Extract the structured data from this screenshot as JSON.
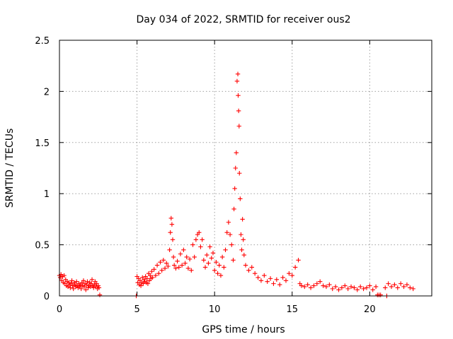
{
  "chart_data": {
    "type": "scatter",
    "title": "Day 034 of 2022, SRMTID for receiver ous2",
    "xlabel": "GPS time / hours",
    "ylabel": "SRMTID / TECUs",
    "xlim": [
      0,
      24
    ],
    "ylim": [
      0,
      2.5
    ],
    "xticks": [
      0,
      5,
      10,
      15,
      20
    ],
    "xtick_labels": [
      "0",
      "5",
      "10",
      "15",
      "20"
    ],
    "yticks": [
      0,
      0.5,
      1,
      1.5,
      2,
      2.5
    ],
    "ytick_labels": [
      "0",
      "0.5",
      "1",
      "1.5",
      "2",
      "2.5"
    ],
    "grid": true,
    "marker": "+",
    "color": "#ff0000",
    "series": [
      {
        "name": "SRMTID",
        "points": [
          [
            0.0,
            0.2
          ],
          [
            0.05,
            0.18
          ],
          [
            0.1,
            0.21
          ],
          [
            0.15,
            0.15
          ],
          [
            0.2,
            0.19
          ],
          [
            0.25,
            0.13
          ],
          [
            0.3,
            0.2
          ],
          [
            0.35,
            0.12
          ],
          [
            0.4,
            0.16
          ],
          [
            0.45,
            0.1
          ],
          [
            0.5,
            0.14
          ],
          [
            0.55,
            0.09
          ],
          [
            0.6,
            0.13
          ],
          [
            0.65,
            0.11
          ],
          [
            0.7,
            0.08
          ],
          [
            0.75,
            0.12
          ],
          [
            0.8,
            0.15
          ],
          [
            0.85,
            0.1
          ],
          [
            0.9,
            0.07
          ],
          [
            0.95,
            0.13
          ],
          [
            1.0,
            0.11
          ],
          [
            1.05,
            0.09
          ],
          [
            1.1,
            0.14
          ],
          [
            1.15,
            0.1
          ],
          [
            1.2,
            0.08
          ],
          [
            1.25,
            0.12
          ],
          [
            1.3,
            0.09
          ],
          [
            1.35,
            0.11
          ],
          [
            1.4,
            0.07
          ],
          [
            1.45,
            0.13
          ],
          [
            1.5,
            0.1
          ],
          [
            1.55,
            0.15
          ],
          [
            1.6,
            0.09
          ],
          [
            1.65,
            0.12
          ],
          [
            1.7,
            0.06
          ],
          [
            1.75,
            0.11
          ],
          [
            1.8,
            0.14
          ],
          [
            1.85,
            0.08
          ],
          [
            1.9,
            0.1
          ],
          [
            1.95,
            0.13
          ],
          [
            2.0,
            0.09
          ],
          [
            2.05,
            0.12
          ],
          [
            2.1,
            0.16
          ],
          [
            2.15,
            0.1
          ],
          [
            2.2,
            0.08
          ],
          [
            2.25,
            0.11
          ],
          [
            2.3,
            0.14
          ],
          [
            2.35,
            0.09
          ],
          [
            2.4,
            0.12
          ],
          [
            2.45,
            0.07
          ],
          [
            2.5,
            0.1
          ],
          [
            2.55,
            0.08
          ],
          [
            2.6,
            0.01
          ],
          [
            4.95,
            0.0
          ],
          [
            5.0,
            0.19
          ],
          [
            5.05,
            0.13
          ],
          [
            5.1,
            0.17
          ],
          [
            5.15,
            0.11
          ],
          [
            5.2,
            0.15
          ],
          [
            5.25,
            0.1
          ],
          [
            5.3,
            0.13
          ],
          [
            5.35,
            0.18
          ],
          [
            5.4,
            0.12
          ],
          [
            5.45,
            0.16
          ],
          [
            5.5,
            0.14
          ],
          [
            5.55,
            0.19
          ],
          [
            5.6,
            0.13
          ],
          [
            5.65,
            0.17
          ],
          [
            5.7,
            0.12
          ],
          [
            5.75,
            0.22
          ],
          [
            5.8,
            0.15
          ],
          [
            5.85,
            0.2
          ],
          [
            5.9,
            0.17
          ],
          [
            5.95,
            0.24
          ],
          [
            6.0,
            0.18
          ],
          [
            6.1,
            0.26
          ],
          [
            6.2,
            0.2
          ],
          [
            6.3,
            0.3
          ],
          [
            6.4,
            0.22
          ],
          [
            6.5,
            0.33
          ],
          [
            6.6,
            0.25
          ],
          [
            6.7,
            0.35
          ],
          [
            6.8,
            0.27
          ],
          [
            6.9,
            0.32
          ],
          [
            7.0,
            0.29
          ],
          [
            7.1,
            0.45
          ],
          [
            7.15,
            0.62
          ],
          [
            7.2,
            0.76
          ],
          [
            7.25,
            0.7
          ],
          [
            7.3,
            0.55
          ],
          [
            7.35,
            0.38
          ],
          [
            7.4,
            0.3
          ],
          [
            7.5,
            0.27
          ],
          [
            7.6,
            0.34
          ],
          [
            7.7,
            0.28
          ],
          [
            7.8,
            0.41
          ],
          [
            7.9,
            0.3
          ],
          [
            8.0,
            0.45
          ],
          [
            8.1,
            0.32
          ],
          [
            8.2,
            0.38
          ],
          [
            8.3,
            0.27
          ],
          [
            8.4,
            0.36
          ],
          [
            8.5,
            0.25
          ],
          [
            8.6,
            0.5
          ],
          [
            8.7,
            0.38
          ],
          [
            8.8,
            0.55
          ],
          [
            8.9,
            0.6
          ],
          [
            9.0,
            0.62
          ],
          [
            9.1,
            0.48
          ],
          [
            9.2,
            0.55
          ],
          [
            9.3,
            0.35
          ],
          [
            9.4,
            0.28
          ],
          [
            9.5,
            0.4
          ],
          [
            9.6,
            0.32
          ],
          [
            9.7,
            0.48
          ],
          [
            9.8,
            0.37
          ],
          [
            9.9,
            0.42
          ],
          [
            10.0,
            0.25
          ],
          [
            10.1,
            0.33
          ],
          [
            10.2,
            0.22
          ],
          [
            10.3,
            0.3
          ],
          [
            10.4,
            0.2
          ],
          [
            10.5,
            0.38
          ],
          [
            10.6,
            0.28
          ],
          [
            10.7,
            0.45
          ],
          [
            10.8,
            0.62
          ],
          [
            10.9,
            0.72
          ],
          [
            11.0,
            0.6
          ],
          [
            11.1,
            0.5
          ],
          [
            11.2,
            0.35
          ],
          [
            11.25,
            0.85
          ],
          [
            11.3,
            1.05
          ],
          [
            11.35,
            1.25
          ],
          [
            11.4,
            1.4
          ],
          [
            11.45,
            2.1
          ],
          [
            11.5,
            2.17
          ],
          [
            11.52,
            1.96
          ],
          [
            11.55,
            1.81
          ],
          [
            11.58,
            1.66
          ],
          [
            11.6,
            1.2
          ],
          [
            11.65,
            0.95
          ],
          [
            11.7,
            0.6
          ],
          [
            11.75,
            0.45
          ],
          [
            11.8,
            0.75
          ],
          [
            11.85,
            0.55
          ],
          [
            11.9,
            0.4
          ],
          [
            12.0,
            0.3
          ],
          [
            12.2,
            0.25
          ],
          [
            12.4,
            0.28
          ],
          [
            12.6,
            0.22
          ],
          [
            12.8,
            0.18
          ],
          [
            13.0,
            0.15
          ],
          [
            13.2,
            0.2
          ],
          [
            13.4,
            0.14
          ],
          [
            13.6,
            0.17
          ],
          [
            13.8,
            0.12
          ],
          [
            14.0,
            0.16
          ],
          [
            14.2,
            0.11
          ],
          [
            14.4,
            0.18
          ],
          [
            14.6,
            0.15
          ],
          [
            14.8,
            0.22
          ],
          [
            15.0,
            0.2
          ],
          [
            15.2,
            0.28
          ],
          [
            15.4,
            0.35
          ],
          [
            15.5,
            0.12
          ],
          [
            15.6,
            0.1
          ],
          [
            15.8,
            0.09
          ],
          [
            16.0,
            0.11
          ],
          [
            16.2,
            0.08
          ],
          [
            16.4,
            0.1
          ],
          [
            16.6,
            0.12
          ],
          [
            16.8,
            0.14
          ],
          [
            17.0,
            0.1
          ],
          [
            17.2,
            0.09
          ],
          [
            17.4,
            0.11
          ],
          [
            17.6,
            0.07
          ],
          [
            17.8,
            0.09
          ],
          [
            18.0,
            0.06
          ],
          [
            18.2,
            0.08
          ],
          [
            18.4,
            0.1
          ],
          [
            18.6,
            0.07
          ],
          [
            18.8,
            0.09
          ],
          [
            19.0,
            0.08
          ],
          [
            19.2,
            0.06
          ],
          [
            19.4,
            0.09
          ],
          [
            19.6,
            0.07
          ],
          [
            19.8,
            0.08
          ],
          [
            20.0,
            0.1
          ],
          [
            20.2,
            0.06
          ],
          [
            20.4,
            0.09
          ],
          [
            20.5,
            0.01
          ],
          [
            20.6,
            0.01
          ],
          [
            20.7,
            0.01
          ],
          [
            21.0,
            0.08
          ],
          [
            21.1,
            0.0
          ],
          [
            21.2,
            0.12
          ],
          [
            21.4,
            0.09
          ],
          [
            21.6,
            0.11
          ],
          [
            21.8,
            0.08
          ],
          [
            22.0,
            0.12
          ],
          [
            22.2,
            0.09
          ],
          [
            22.4,
            0.11
          ],
          [
            22.6,
            0.08
          ],
          [
            22.8,
            0.07
          ]
        ]
      }
    ]
  }
}
